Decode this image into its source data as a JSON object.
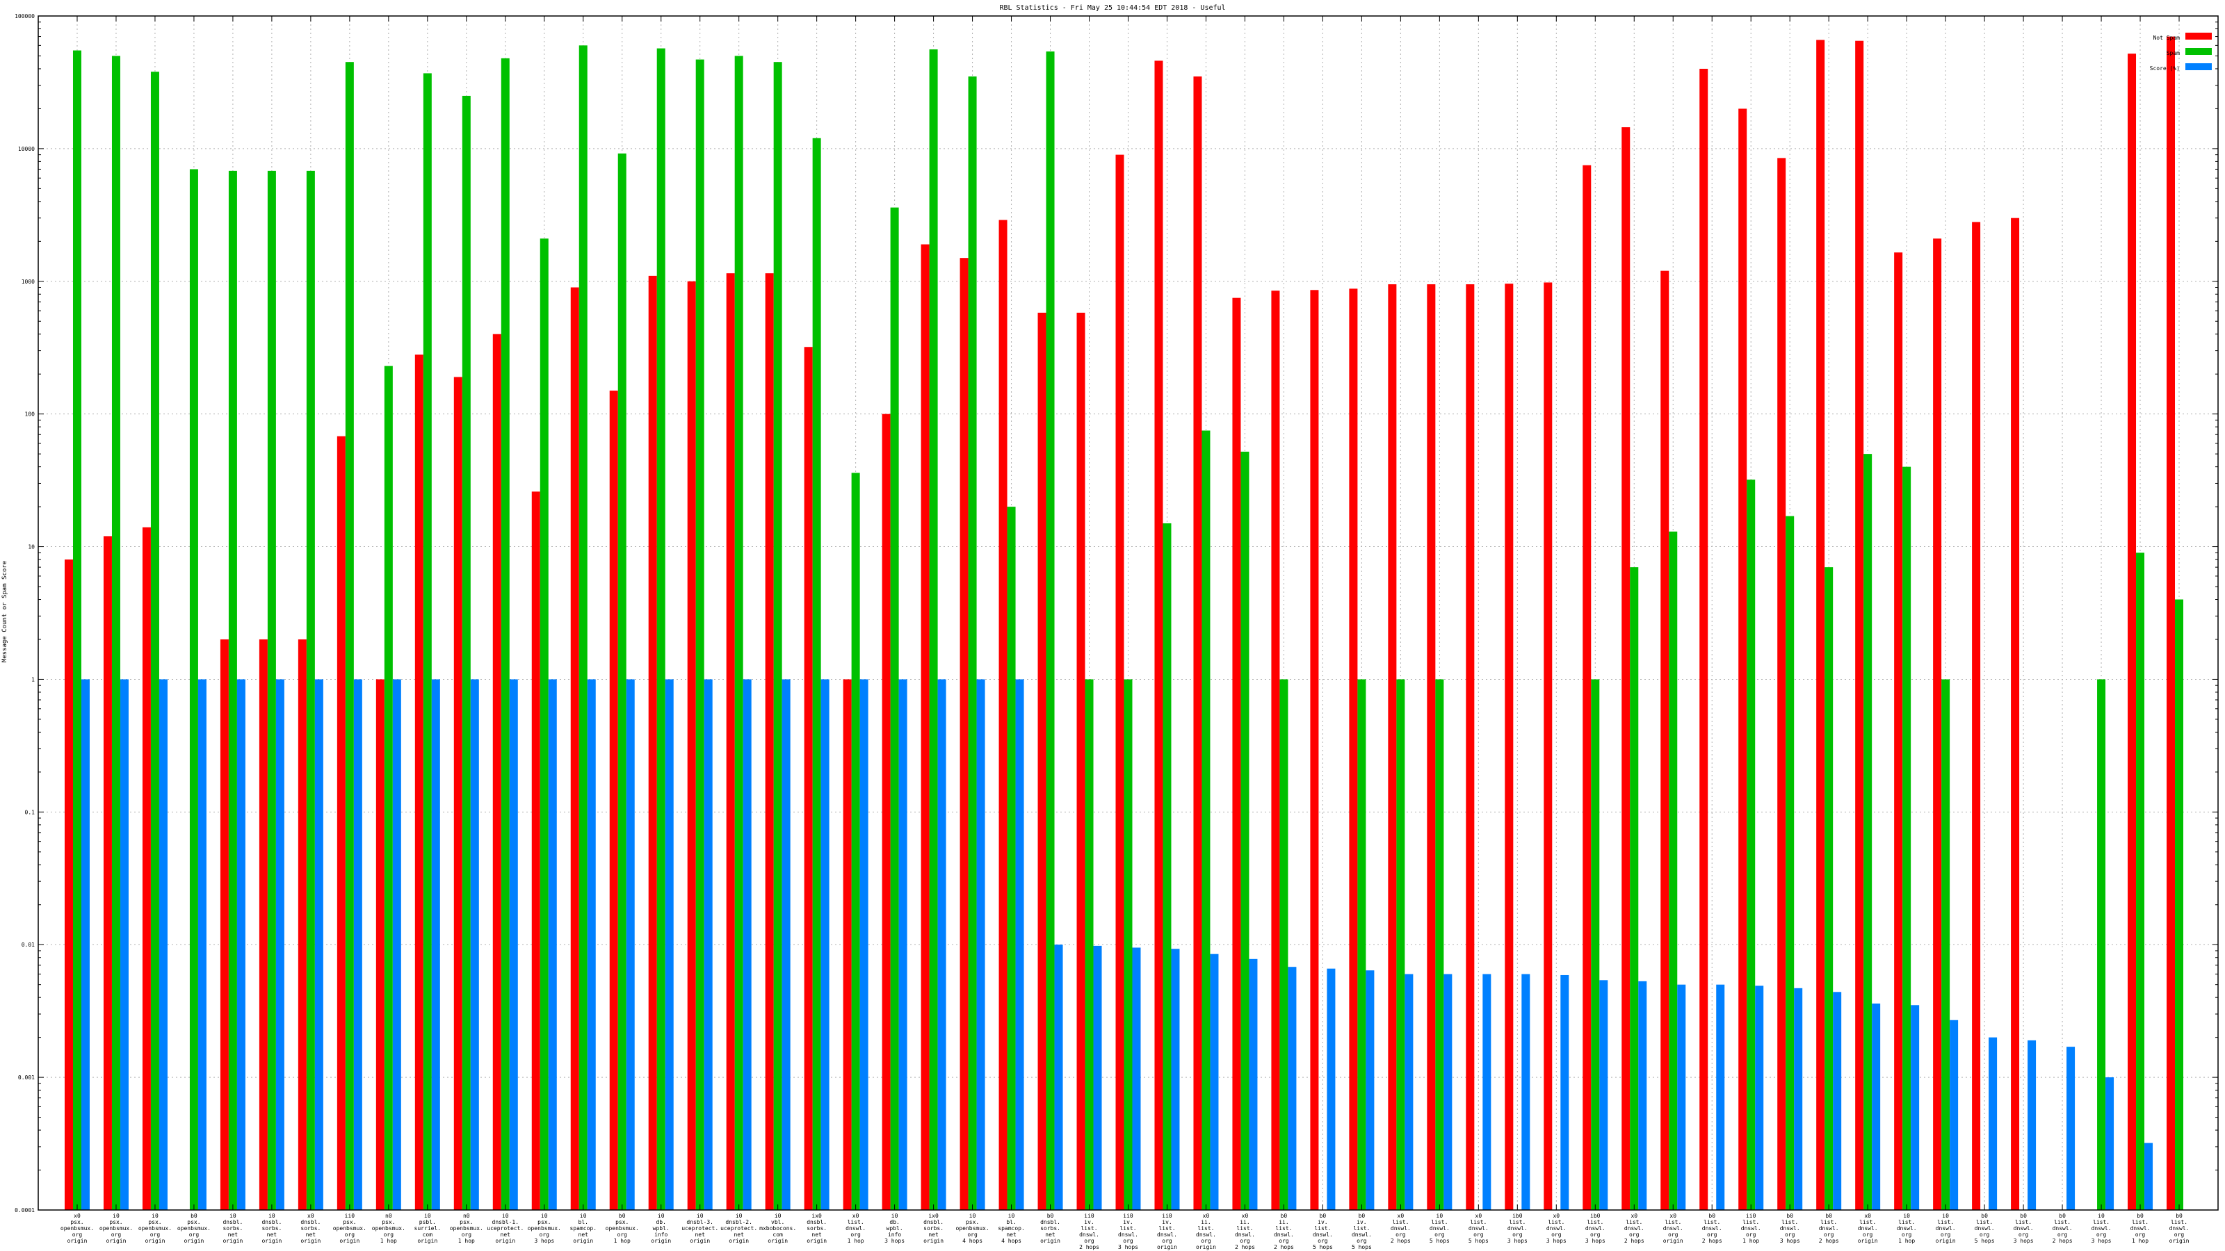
{
  "chart_data": {
    "type": "bar",
    "title": "RBL Statistics - Fri May 25 10:44:54 EDT 2018 - Useful",
    "ylabel": "Message Count or Spam Score",
    "xlabel": "",
    "yscale": "log",
    "ylim": [
      0.0001,
      100000
    ],
    "yticks": [
      "0.0001",
      "0.001",
      "0.01",
      "0.1",
      "1",
      "10",
      "100",
      "1000",
      "10000",
      "100000"
    ],
    "grid": true,
    "legend_position": "top-right",
    "categories": [
      "x0\npsx.\nopenbsmux.\norg\norigin",
      "i0\npsx.\nopenbsmux.\norg\norigin",
      "i0\npsx.\nopenbsmux.\norg\norigin",
      "b0\npsx.\nopenbsmux.\norg\norigin",
      "i0\ndnsbl.\nsorbs.\nnet\norigin",
      "i0\ndnsbl.\nsorbs.\nnet\norigin",
      "x0\ndnsbl.\nsorbs.\nnet\norigin",
      "ii0\npsx.\nopenbsmux.\norg\norigin",
      "n0\npsx.\nopenbsmux.\norg\n1 hop",
      "i0\npsbl.\nsurriel.\ncom\norigin",
      "n0\npsx.\nopenbsmux.\norg\n1 hop",
      "i0\ndnsbl-1.\nuceprotect.\nnet\norigin",
      "i0\npsx.\nopenbsmux.\norg\n3 hops",
      "i0\nbl.\nspamcop.\nnet\norigin",
      "b0\npsx.\nopenbsmux.\norg\n1 hop",
      "i0\ndb.\nwpbl.\ninfo\norigin",
      "i0\ndnsbl-3.\nuceprotect.\nnet\norigin",
      "i0\ndnsbl-2.\nuceprotect.\nnet\norigin",
      "i0\nvbl.\nmxbobocons.\ncom\norigin",
      "ix0\ndnsbl.\nsorbs.\nnet\norigin",
      "x0\nlist.\ndnswl.\norg\n1 hop",
      "i0\ndb.\nwpbl.\ninfo\n3 hops",
      "ix0\ndnsbl.\nsorbs.\nnet\norigin",
      "i0\npsx.\nopenbsmux.\norg\n4 hops",
      "i0\nbl.\nspamcop.\nnet\n4 hops",
      "b0\ndnsbl.\nsorbs.\nnet\norigin",
      "ii0\niv.\nlist.\ndnswl.\norg\n2 hops",
      "ii0\niv.\nlist.\ndnswl.\norg\n3 hops",
      "ii0\niv.\nlist.\ndnswl.\norg\norigin",
      "x0\nii.\nlist.\ndnswl.\norg\norigin",
      "x0\nii.\nlist.\ndnswl.\norg\n2 hops",
      "b0\nii.\nlist.\ndnswl.\norg\n2 hops",
      "b0\niv.\nlist.\ndnswl.\norg\n5 hops",
      "b0\niv.\nlist.\ndnswl.\norg\n5 hops",
      "x0\nlist.\ndnswl.\norg\n2 hops",
      "i0\nlist.\ndnswl.\norg\n5 hops",
      "x0\nlist.\ndnswl.\norg\n5 hops",
      "ib0\nlist.\ndnswl.\norg\n3 hops",
      "x0\nlist.\ndnswl.\norg\n3 hops",
      "ib0\nlist.\ndnswl.\norg\n3 hops",
      "x0\nlist.\ndnswl.\norg\n2 hops",
      "x0\nlist.\ndnswl.\norg\norigin",
      "b0\nlist.\ndnswl.\norg\n2 hops",
      "ii0\nlist.\ndnswl.\norg\n1 hop",
      "b0\nlist.\ndnswl.\norg\n3 hops",
      "b0\nlist.\ndnswl.\norg\n2 hops",
      "x0\nlist.\ndnswl.\norg\norigin",
      "i0\nlist.\ndnswl.\norg\n1 hop",
      "i0\nlist.\ndnswl.\norg\norigin",
      "b0\nlist.\ndnswl.\norg\n5 hops",
      "b0\nlist.\ndnswl.\norg\n3 hops",
      "b0\nlist.\ndnswl.\norg\n2 hops",
      "i0\nlist.\ndnswl.\norg\n3 hops",
      "b0\nlist.\ndnswl.\norg\n1 hop",
      "b0\nlist.\ndnswl.\norg\norigin"
    ],
    "series": [
      {
        "name": "Not Spam",
        "color": "#ff0000",
        "values": [
          8,
          12,
          14,
          null,
          2,
          2,
          2,
          68,
          1,
          280,
          190,
          400,
          26,
          900,
          150,
          1100,
          1000,
          1150,
          1150,
          320,
          1,
          100,
          1900,
          1500,
          2900,
          580,
          580,
          9000,
          46000,
          35000,
          750,
          850,
          860,
          880,
          950,
          950,
          950,
          960,
          980,
          7500,
          14500,
          1200,
          40000,
          20000,
          8500,
          66000,
          65000,
          1650,
          2100,
          2800,
          3000,
          null,
          null,
          52000,
          70000
        ]
      },
      {
        "name": "Spam",
        "color": "#00c000",
        "values": [
          55000,
          50000,
          38000,
          7000,
          6800,
          6800,
          6800,
          45000,
          230,
          37000,
          25000,
          48000,
          2100,
          60000,
          9200,
          57000,
          47000,
          50000,
          45000,
          12000,
          36,
          3600,
          56000,
          35000,
          20,
          54000,
          1,
          1,
          15,
          75,
          52,
          1,
          null,
          1,
          1,
          1,
          null,
          null,
          null,
          1,
          7,
          13,
          null,
          32,
          17,
          7,
          50,
          40,
          1,
          null,
          null,
          null,
          1,
          9,
          4
        ]
      },
      {
        "name": "Score (%)",
        "color": "#0080ff",
        "values": [
          1,
          1,
          1,
          1,
          1,
          1,
          1,
          1,
          1,
          1,
          1,
          1,
          1,
          1,
          1,
          1,
          1,
          1,
          1,
          1,
          1,
          1,
          1,
          1,
          1,
          0.01,
          0.0098,
          0.0095,
          0.0093,
          0.0085,
          0.0078,
          0.0068,
          0.0066,
          0.0064,
          0.006,
          0.006,
          0.006,
          0.006,
          0.0059,
          0.0054,
          0.0053,
          0.005,
          0.005,
          0.0049,
          0.0047,
          0.0044,
          0.0036,
          0.0035,
          0.0027,
          0.002,
          0.0019,
          0.0017,
          0.001,
          0.00032,
          null
        ]
      }
    ]
  },
  "legend": [
    {
      "label": "Not Spam",
      "color": "#ff0000"
    },
    {
      "label": "Spam",
      "color": "#00c000"
    },
    {
      "label": "Score (%)",
      "color": "#0080ff"
    }
  ]
}
